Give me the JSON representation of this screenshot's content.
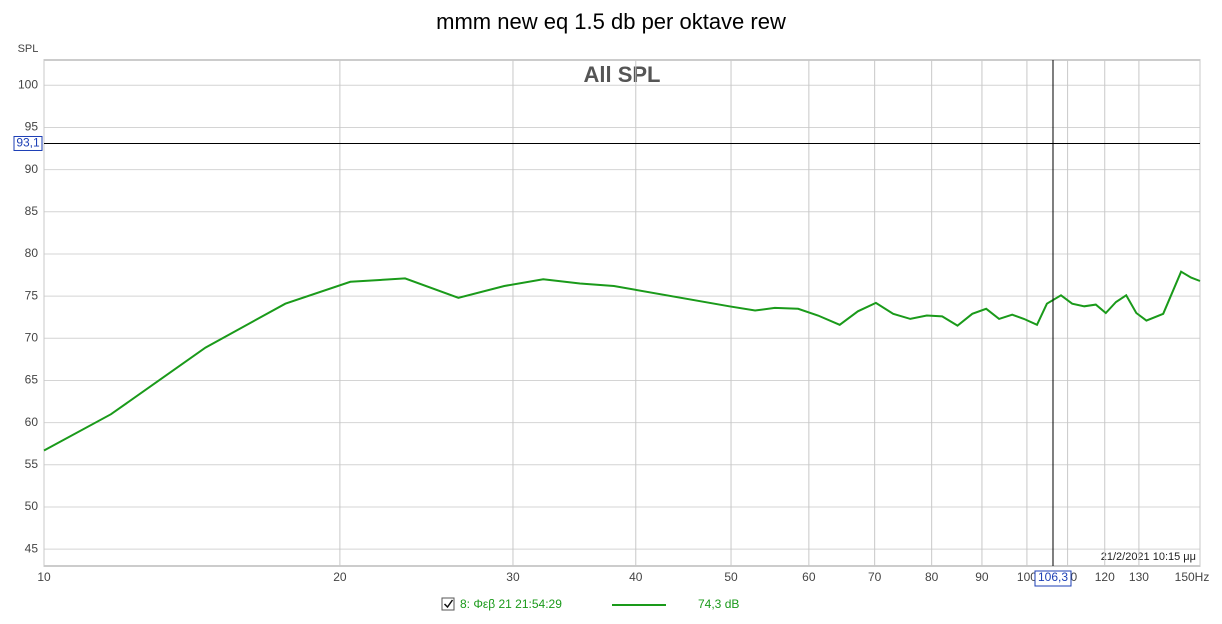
{
  "chart_data": {
    "type": "line",
    "title": "mmm new eq 1.5 db per oktave rew",
    "subtitle": "All SPL",
    "ylabel": "SPL",
    "x": [
      10,
      11.7,
      14.6,
      17.6,
      20.5,
      23.3,
      26.4,
      29.4,
      32.2,
      35.1,
      38.0,
      49.8,
      52.9,
      55.4,
      58.5,
      61.3,
      64.5,
      67.3,
      70.2,
      73.1,
      76.1,
      79.1,
      82.0,
      85.0,
      88.0,
      90.9,
      93.7,
      96.6,
      99.3,
      102.4,
      104.8,
      108.3,
      111.2,
      114.4,
      117.5,
      120.3,
      123.2,
      126.2,
      129.2,
      132.3,
      137.6,
      143.5,
      146.9,
      150
    ],
    "series": [
      {
        "name": "8: Φεβ 21 21:54:29",
        "color": "#1a9a1a",
        "values": [
          56.7,
          61.0,
          68.9,
          74.1,
          76.7,
          77.1,
          74.8,
          76.2,
          77.0,
          76.5,
          76.2,
          73.8,
          73.3,
          73.6,
          73.5,
          72.7,
          71.6,
          73.2,
          74.2,
          72.9,
          72.3,
          72.7,
          72.6,
          71.5,
          72.9,
          73.5,
          72.3,
          72.8,
          72.3,
          71.6,
          74.1,
          75.1,
          74.1,
          73.8,
          74.0,
          73.0,
          74.3,
          75.1,
          73.0,
          72.1,
          72.9,
          77.9,
          77.2,
          76.8
        ]
      }
    ],
    "xscale": "log",
    "xlim": [
      10,
      150
    ],
    "ylim": [
      43,
      103
    ],
    "xticks": [
      10,
      20,
      30,
      40,
      50,
      60,
      70,
      80,
      90,
      100,
      110,
      120,
      130,
      {
        "value": 150,
        "label": "150Hz"
      }
    ],
    "yticks": [
      45,
      50,
      55,
      60,
      65,
      70,
      75,
      80,
      85,
      90,
      95,
      100
    ],
    "grid": true,
    "cursor": {
      "x": {
        "value": 106.3,
        "label": "106,3"
      },
      "y": {
        "value": 93.1,
        "label": "93,1"
      },
      "readout": {
        "value": 74.3,
        "label": "74,3 dB"
      }
    },
    "timestamp": "21/2/2021 10:15 μμ"
  }
}
